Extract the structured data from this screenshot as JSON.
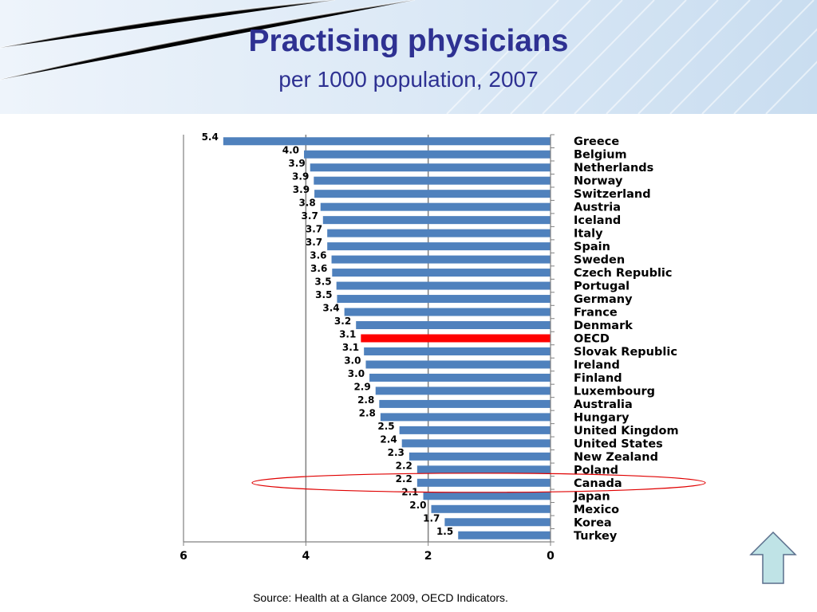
{
  "slide": {
    "title": "Practising physicians",
    "subtitle": "per 1000 population, 2007",
    "source": "Source: Health at a Glance 2009, OECD Indicators."
  },
  "colors": {
    "bar": "#4F81BD",
    "highlight_bar": "#FF0000",
    "title": "#2E3192",
    "ellipse": "#E00000",
    "arrow_fill": "#BFE3E6",
    "arrow_stroke": "#5A6E8C"
  },
  "icons": {
    "nav": "up-arrow-icon"
  },
  "chart_data": {
    "type": "bar",
    "orientation": "horizontal",
    "x_reversed": true,
    "xlim": [
      0,
      6
    ],
    "xticks": [
      "0",
      "2",
      "4",
      "6"
    ],
    "grid": "vertical gridlines at 2 and 4",
    "highlight_category": "OECD",
    "circled_category": "Canada",
    "categories": [
      "Greece",
      "Belgium",
      "Netherlands",
      "Norway",
      "Switzerland",
      "Austria",
      "Iceland",
      "Italy",
      "Spain",
      "Sweden",
      "Czech Republic",
      "Portugal",
      "Germany",
      "France",
      "Denmark",
      "OECD",
      "Slovak Republic",
      "Ireland",
      "Finland",
      "Luxembourg",
      "Australia",
      "Hungary",
      "United Kingdom",
      "United States",
      "New Zealand",
      "Poland",
      "Canada",
      "Japan",
      "Mexico",
      "Korea",
      "Turkey"
    ],
    "values": [
      5.35,
      4.03,
      3.93,
      3.87,
      3.86,
      3.76,
      3.72,
      3.65,
      3.65,
      3.58,
      3.57,
      3.5,
      3.49,
      3.37,
      3.18,
      3.1,
      3.05,
      3.02,
      2.96,
      2.86,
      2.8,
      2.78,
      2.47,
      2.43,
      2.31,
      2.18,
      2.18,
      2.08,
      1.95,
      1.73,
      1.51
    ],
    "labels": [
      "5.4",
      "4.0",
      "3.9",
      "3.9",
      "3.9",
      "3.8",
      "3.7",
      "3.7",
      "3.7",
      "3.6",
      "3.6",
      "3.5",
      "3.5",
      "3.4",
      "3.2",
      "3.1",
      "3.1",
      "3.0",
      "3.0",
      "2.9",
      "2.8",
      "2.8",
      "2.5",
      "2.4",
      "2.3",
      "2.2",
      "2.2",
      "2.1",
      "2.0",
      "1.7",
      "1.5"
    ]
  }
}
